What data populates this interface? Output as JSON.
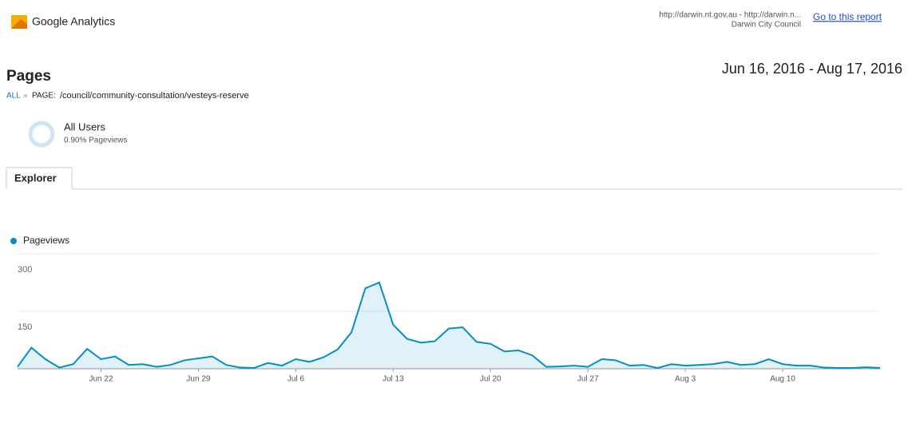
{
  "header": {
    "brand": "Google Analytics",
    "property": "http://darwin.nt.gov.au - http://darwin.n...",
    "account": "Darwin City Council",
    "report_link": "Go to this report"
  },
  "date_range": "Jun 16, 2016 - Aug 17, 2016",
  "title": "Pages",
  "breadcrumb": {
    "root": "ALL",
    "separator": "»",
    "prefix": "PAGE:",
    "page": "/council/community-consultation/vesteys-reserve"
  },
  "segment": {
    "name": "All Users",
    "share": "0.90% Pageviews"
  },
  "tab": "Explorer",
  "chart_data": {
    "type": "area",
    "categories": [
      null,
      null,
      null,
      null,
      null,
      null,
      "Jun 22",
      null,
      null,
      null,
      null,
      null,
      null,
      "Jun 29",
      null,
      null,
      null,
      null,
      null,
      null,
      "Jul 6",
      null,
      null,
      null,
      null,
      null,
      null,
      "Jul 13",
      null,
      null,
      null,
      null,
      null,
      null,
      "Jul 20",
      null,
      null,
      null,
      null,
      null,
      null,
      "Jul 27",
      null,
      null,
      null,
      null,
      null,
      null,
      "Aug 3",
      null,
      null,
      null,
      null,
      null,
      null,
      "Aug 10",
      null,
      null,
      null,
      null,
      null,
      null,
      null
    ],
    "series": [
      {
        "name": "Pageviews",
        "color": "#058dc7",
        "values": [
          5,
          55,
          25,
          3,
          12,
          52,
          25,
          32,
          10,
          12,
          5,
          10,
          22,
          27,
          32,
          10,
          3,
          2,
          15,
          8,
          25,
          18,
          30,
          50,
          95,
          210,
          225,
          115,
          78,
          68,
          72,
          105,
          108,
          70,
          65,
          45,
          48,
          35,
          5,
          6,
          8,
          5,
          25,
          22,
          8,
          10,
          2,
          12,
          8,
          10,
          12,
          18,
          10,
          12,
          25,
          12,
          8,
          8,
          3,
          2,
          2,
          4,
          2
        ]
      }
    ],
    "ylim": [
      0,
      300
    ],
    "yticks": [
      150,
      300
    ],
    "grid": true
  }
}
